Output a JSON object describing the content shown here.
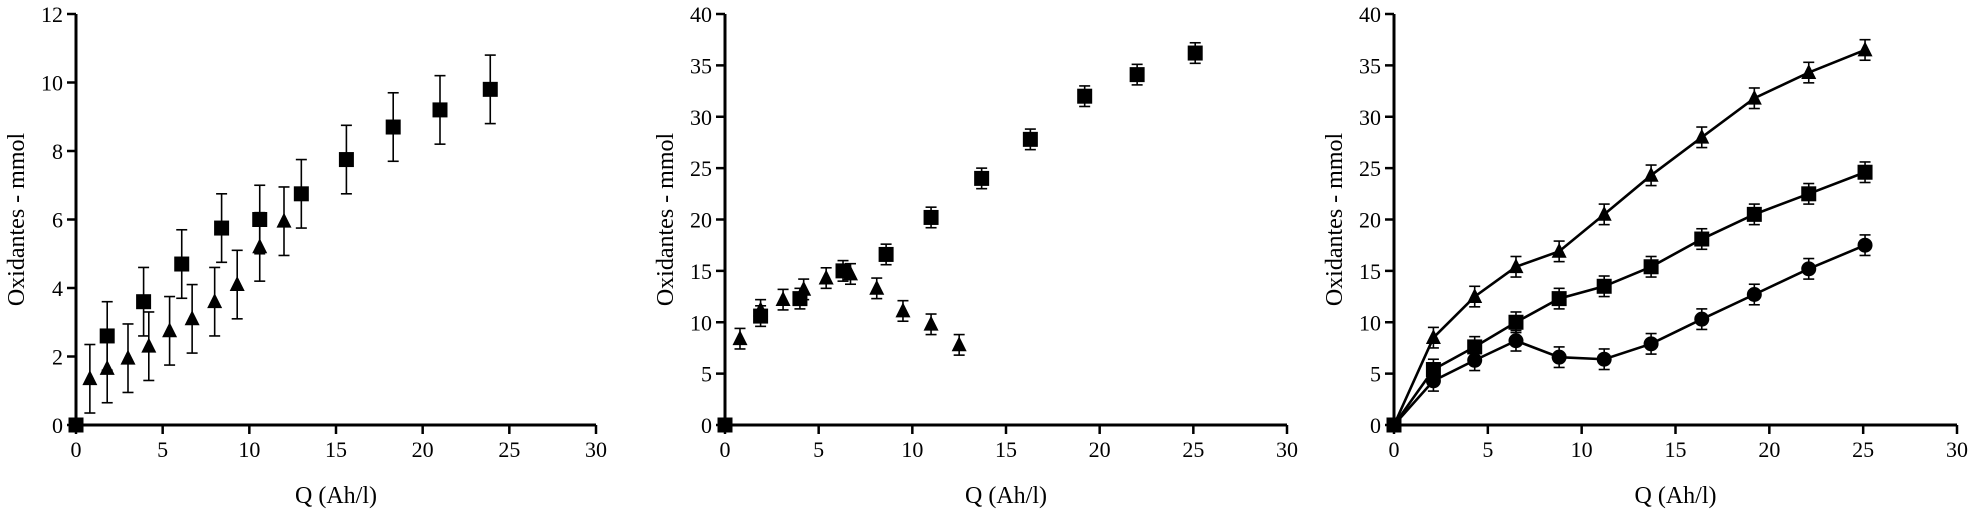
{
  "chart_data": [
    {
      "type": "scatter",
      "xlabel": "Q (Ah/l)",
      "ylabel": "Oxidantes - mmol",
      "xlim": [
        0,
        30
      ],
      "ylim": [
        0,
        12
      ],
      "xticks": [
        0,
        5,
        10,
        15,
        20,
        25,
        30
      ],
      "yticks": [
        0,
        2,
        4,
        6,
        8,
        10,
        12
      ],
      "grid": false,
      "series": [
        {
          "marker": "square",
          "connected": false,
          "x": [
            0,
            1.8,
            3.9,
            6.1,
            8.4,
            10.6,
            13.0,
            15.6,
            18.3,
            21.0,
            23.9
          ],
          "y": [
            0,
            2.6,
            3.6,
            4.7,
            5.75,
            6.0,
            6.75,
            7.75,
            8.7,
            9.2,
            9.8
          ],
          "err": [
            0,
            1.0,
            1.0,
            1.0,
            1.0,
            1.0,
            1.0,
            1.0,
            1.0,
            1.0,
            1.0
          ]
        },
        {
          "marker": "triangle",
          "connected": false,
          "x": [
            0.8,
            1.8,
            3.0,
            4.2,
            5.4,
            6.7,
            8.0,
            9.3,
            10.6,
            12.0
          ],
          "y": [
            1.35,
            1.65,
            1.95,
            2.3,
            2.75,
            3.1,
            3.6,
            4.1,
            5.2,
            5.95
          ],
          "err": [
            1.0,
            1.0,
            1.0,
            1.0,
            1.0,
            1.0,
            1.0,
            1.0,
            1.0,
            1.0
          ]
        }
      ]
    },
    {
      "type": "scatter",
      "xlabel": "Q (Ah/l)",
      "ylabel": "Oxidantes - mmol",
      "xlim": [
        0,
        30
      ],
      "ylim": [
        0,
        40
      ],
      "xticks": [
        0,
        5,
        10,
        15,
        20,
        25,
        30
      ],
      "yticks": [
        0,
        5,
        10,
        15,
        20,
        25,
        30,
        35,
        40
      ],
      "grid": false,
      "series": [
        {
          "marker": "square",
          "connected": false,
          "x": [
            0,
            1.9,
            4.0,
            6.3,
            8.6,
            11.0,
            13.7,
            16.3,
            19.2,
            22.0,
            25.1
          ],
          "y": [
            0,
            10.6,
            12.3,
            15.0,
            16.6,
            20.2,
            24.0,
            27.8,
            32.0,
            34.1,
            36.2
          ],
          "err": [
            0,
            1.0,
            1.0,
            1.0,
            1.0,
            1.0,
            1.0,
            1.0,
            1.0,
            1.0,
            1.0
          ]
        },
        {
          "marker": "triangle",
          "connected": false,
          "x": [
            0.8,
            1.9,
            3.1,
            4.2,
            5.4,
            6.7,
            8.1,
            9.5,
            11.0,
            12.5
          ],
          "y": [
            8.4,
            11.2,
            12.2,
            13.2,
            14.3,
            14.7,
            13.3,
            11.1,
            9.8,
            7.8
          ],
          "err": [
            1.0,
            1.0,
            1.0,
            1.0,
            1.0,
            1.0,
            1.0,
            1.0,
            1.0,
            1.0
          ]
        }
      ]
    },
    {
      "type": "line",
      "xlabel": "Q (Ah/l)",
      "ylabel": "Oxidantes - mmol",
      "xlim": [
        0,
        30
      ],
      "ylim": [
        0,
        40
      ],
      "xticks": [
        0,
        5,
        10,
        15,
        20,
        25,
        30
      ],
      "yticks": [
        0,
        5,
        10,
        15,
        20,
        25,
        30,
        35,
        40
      ],
      "grid": false,
      "series": [
        {
          "marker": "triangle",
          "connected": true,
          "x": [
            0,
            2.1,
            4.3,
            6.5,
            8.8,
            11.2,
            13.7,
            16.4,
            19.2,
            22.1,
            25.1
          ],
          "y": [
            0,
            8.5,
            12.5,
            15.4,
            16.9,
            20.5,
            24.3,
            28.0,
            31.8,
            34.3,
            36.5
          ],
          "err": [
            0,
            1.0,
            1.0,
            1.0,
            1.0,
            1.0,
            1.0,
            1.0,
            1.0,
            1.0,
            1.0
          ]
        },
        {
          "marker": "square",
          "connected": true,
          "x": [
            0,
            2.1,
            4.3,
            6.5,
            8.8,
            11.2,
            13.7,
            16.4,
            19.2,
            22.1,
            25.1
          ],
          "y": [
            0,
            5.4,
            7.6,
            10.0,
            12.3,
            13.5,
            15.4,
            18.1,
            20.5,
            22.5,
            24.6
          ],
          "err": [
            0,
            1.0,
            1.0,
            1.0,
            1.0,
            1.0,
            1.0,
            1.0,
            1.0,
            1.0,
            1.0
          ]
        },
        {
          "marker": "circle",
          "connected": true,
          "x": [
            0,
            2.1,
            4.3,
            6.5,
            8.8,
            11.2,
            13.7,
            16.4,
            19.2,
            22.1,
            25.1
          ],
          "y": [
            0,
            4.3,
            6.3,
            8.2,
            6.6,
            6.4,
            7.9,
            10.3,
            12.7,
            15.2,
            17.5
          ],
          "err": [
            0,
            1.0,
            1.0,
            1.0,
            1.0,
            1.0,
            1.0,
            1.0,
            1.0,
            1.0,
            1.0
          ]
        }
      ]
    }
  ]
}
